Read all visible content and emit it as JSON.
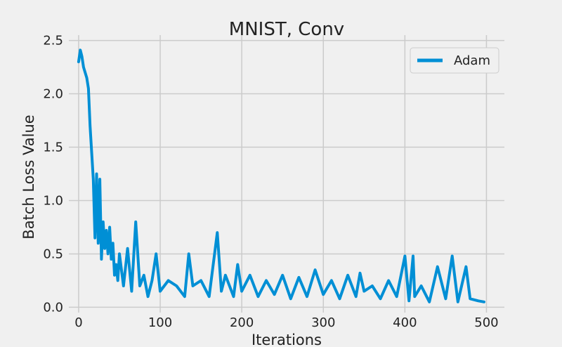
{
  "chart_data": {
    "type": "line",
    "title": "MNIST, Conv",
    "xlabel": "Iterations",
    "ylabel": "Batch Loss Value",
    "xlim": [
      -12,
      522
    ],
    "ylim": [
      -0.05,
      2.55
    ],
    "xticks": [
      0,
      100,
      200,
      300,
      400,
      500
    ],
    "yticks": [
      0.0,
      0.5,
      1.0,
      1.5,
      2.0,
      2.5
    ],
    "xtick_labels": [
      "0",
      "100",
      "200",
      "300",
      "400",
      "500"
    ],
    "ytick_labels": [
      "0.0",
      "0.5",
      "1.0",
      "1.5",
      "2.0",
      "2.5"
    ],
    "grid": true,
    "legend_position": "top-right",
    "series": [
      {
        "name": "Adam",
        "color": "#008fd5",
        "x": [
          0,
          2,
          4,
          6,
          8,
          10,
          12,
          14,
          16,
          18,
          20,
          22,
          24,
          26,
          28,
          30,
          32,
          34,
          36,
          38,
          40,
          42,
          44,
          46,
          48,
          50,
          55,
          60,
          65,
          70,
          75,
          80,
          85,
          90,
          95,
          100,
          110,
          120,
          130,
          135,
          140,
          150,
          160,
          170,
          175,
          180,
          190,
          195,
          200,
          210,
          220,
          230,
          240,
          250,
          260,
          270,
          280,
          290,
          300,
          310,
          320,
          330,
          340,
          345,
          350,
          360,
          370,
          380,
          390,
          400,
          405,
          410,
          412,
          420,
          430,
          440,
          450,
          458,
          465,
          475,
          480,
          490,
          497
        ],
        "y": [
          2.3,
          2.41,
          2.35,
          2.25,
          2.2,
          2.15,
          2.05,
          1.7,
          1.45,
          1.2,
          0.65,
          1.25,
          0.6,
          1.2,
          0.45,
          0.8,
          0.55,
          0.72,
          0.5,
          0.75,
          0.45,
          0.6,
          0.3,
          0.4,
          0.25,
          0.5,
          0.2,
          0.55,
          0.15,
          0.8,
          0.2,
          0.3,
          0.1,
          0.25,
          0.5,
          0.15,
          0.25,
          0.2,
          0.1,
          0.5,
          0.2,
          0.25,
          0.1,
          0.7,
          0.15,
          0.3,
          0.1,
          0.4,
          0.15,
          0.3,
          0.1,
          0.25,
          0.12,
          0.3,
          0.08,
          0.28,
          0.1,
          0.35,
          0.12,
          0.25,
          0.08,
          0.3,
          0.1,
          0.32,
          0.15,
          0.2,
          0.08,
          0.25,
          0.1,
          0.48,
          0.06,
          0.48,
          0.1,
          0.2,
          0.05,
          0.38,
          0.08,
          0.48,
          0.05,
          0.38,
          0.08,
          0.06,
          0.05
        ]
      }
    ]
  }
}
